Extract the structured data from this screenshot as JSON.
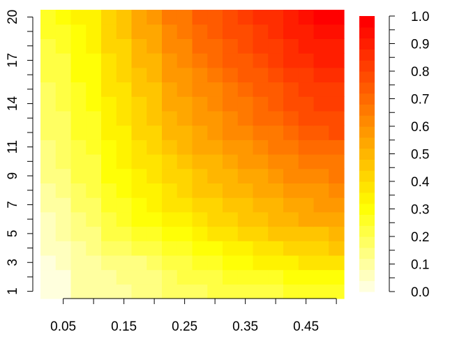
{
  "chart_data": {
    "type": "heatmap",
    "title": "",
    "xlabel": "",
    "ylabel": "",
    "x": [
      0.025,
      0.05,
      0.075,
      0.1,
      0.125,
      0.15,
      0.175,
      0.2,
      0.225,
      0.25,
      0.275,
      0.3,
      0.325,
      0.35,
      0.375,
      0.4,
      0.425,
      0.45,
      0.475,
      0.5
    ],
    "y": [
      1,
      2,
      3,
      4,
      5,
      6,
      7,
      8,
      9,
      10,
      11,
      12,
      13,
      14,
      15,
      16,
      17,
      18,
      19,
      20
    ],
    "x_tick_labels": [
      "0.05",
      "0.15",
      "0.25",
      "0.35",
      "0.45"
    ],
    "y_tick_labels": [
      "1",
      "3",
      "5",
      "7",
      "9",
      "11",
      "14",
      "17",
      "20"
    ],
    "grid": false,
    "legend": {
      "position": "right",
      "range": [
        0.0,
        1.0
      ],
      "tick_labels": [
        "0.0",
        "0.1",
        "0.2",
        "0.3",
        "0.4",
        "0.5",
        "0.6",
        "0.7",
        "0.8",
        "0.9",
        "1.0"
      ]
    },
    "color_levels": 25,
    "colors": {
      "low": "#ffffdd",
      "mid": "#ffff00",
      "high": "#ff0000"
    },
    "values": [
      [
        0.01,
        0.02,
        0.08,
        0.1,
        0.1,
        0.11,
        0.12,
        0.13,
        0.16,
        0.18,
        0.19,
        0.2,
        0.21,
        0.21,
        0.22,
        0.22,
        0.24,
        0.25,
        0.25,
        0.26
      ],
      [
        0.02,
        0.03,
        0.08,
        0.1,
        0.1,
        0.12,
        0.13,
        0.15,
        0.18,
        0.2,
        0.22,
        0.23,
        0.24,
        0.25,
        0.26,
        0.27,
        0.28,
        0.29,
        0.29,
        0.3
      ],
      [
        0.02,
        0.04,
        0.09,
        0.11,
        0.13,
        0.14,
        0.15,
        0.17,
        0.2,
        0.23,
        0.25,
        0.27,
        0.29,
        0.3,
        0.32,
        0.33,
        0.35,
        0.36,
        0.37,
        0.38
      ],
      [
        0.04,
        0.06,
        0.11,
        0.13,
        0.16,
        0.18,
        0.2,
        0.22,
        0.24,
        0.26,
        0.28,
        0.3,
        0.33,
        0.35,
        0.36,
        0.38,
        0.4,
        0.42,
        0.43,
        0.44
      ],
      [
        0.06,
        0.08,
        0.13,
        0.15,
        0.2,
        0.22,
        0.25,
        0.27,
        0.29,
        0.31,
        0.34,
        0.36,
        0.38,
        0.4,
        0.42,
        0.44,
        0.45,
        0.46,
        0.47,
        0.48
      ],
      [
        0.07,
        0.09,
        0.15,
        0.17,
        0.23,
        0.25,
        0.28,
        0.3,
        0.33,
        0.35,
        0.38,
        0.4,
        0.42,
        0.44,
        0.46,
        0.48,
        0.5,
        0.52,
        0.53,
        0.54
      ],
      [
        0.09,
        0.11,
        0.17,
        0.19,
        0.25,
        0.27,
        0.3,
        0.32,
        0.36,
        0.38,
        0.41,
        0.43,
        0.45,
        0.47,
        0.49,
        0.51,
        0.53,
        0.55,
        0.56,
        0.57
      ],
      [
        0.1,
        0.12,
        0.18,
        0.2,
        0.27,
        0.29,
        0.33,
        0.35,
        0.39,
        0.41,
        0.44,
        0.46,
        0.48,
        0.5,
        0.52,
        0.54,
        0.56,
        0.58,
        0.59,
        0.6
      ],
      [
        0.12,
        0.14,
        0.2,
        0.22,
        0.29,
        0.31,
        0.35,
        0.37,
        0.41,
        0.43,
        0.46,
        0.48,
        0.5,
        0.53,
        0.55,
        0.57,
        0.6,
        0.62,
        0.63,
        0.64
      ],
      [
        0.14,
        0.16,
        0.21,
        0.23,
        0.3,
        0.32,
        0.37,
        0.39,
        0.43,
        0.45,
        0.49,
        0.51,
        0.54,
        0.56,
        0.58,
        0.6,
        0.63,
        0.65,
        0.66,
        0.67
      ],
      [
        0.15,
        0.17,
        0.23,
        0.25,
        0.31,
        0.34,
        0.39,
        0.41,
        0.46,
        0.48,
        0.52,
        0.54,
        0.57,
        0.59,
        0.62,
        0.64,
        0.67,
        0.69,
        0.7,
        0.71
      ],
      [
        0.16,
        0.18,
        0.24,
        0.26,
        0.33,
        0.35,
        0.41,
        0.43,
        0.48,
        0.5,
        0.54,
        0.56,
        0.6,
        0.62,
        0.65,
        0.67,
        0.71,
        0.73,
        0.75,
        0.76
      ],
      [
        0.17,
        0.19,
        0.25,
        0.27,
        0.34,
        0.36,
        0.42,
        0.44,
        0.5,
        0.52,
        0.56,
        0.58,
        0.62,
        0.64,
        0.68,
        0.7,
        0.74,
        0.76,
        0.78,
        0.79
      ],
      [
        0.18,
        0.2,
        0.26,
        0.28,
        0.35,
        0.37,
        0.43,
        0.45,
        0.52,
        0.54,
        0.58,
        0.6,
        0.64,
        0.66,
        0.7,
        0.72,
        0.76,
        0.78,
        0.8,
        0.81
      ],
      [
        0.19,
        0.21,
        0.27,
        0.29,
        0.37,
        0.39,
        0.45,
        0.47,
        0.54,
        0.56,
        0.61,
        0.63,
        0.67,
        0.69,
        0.72,
        0.74,
        0.78,
        0.8,
        0.82,
        0.83
      ],
      [
        0.2,
        0.22,
        0.28,
        0.3,
        0.38,
        0.4,
        0.46,
        0.48,
        0.56,
        0.58,
        0.63,
        0.65,
        0.7,
        0.72,
        0.75,
        0.77,
        0.81,
        0.83,
        0.85,
        0.86
      ],
      [
        0.21,
        0.23,
        0.29,
        0.31,
        0.39,
        0.41,
        0.48,
        0.5,
        0.58,
        0.6,
        0.66,
        0.68,
        0.72,
        0.74,
        0.78,
        0.8,
        0.84,
        0.86,
        0.88,
        0.89
      ],
      [
        0.23,
        0.25,
        0.3,
        0.32,
        0.41,
        0.43,
        0.5,
        0.52,
        0.6,
        0.62,
        0.68,
        0.7,
        0.74,
        0.76,
        0.8,
        0.82,
        0.86,
        0.88,
        0.9,
        0.91
      ],
      [
        0.24,
        0.26,
        0.31,
        0.33,
        0.42,
        0.44,
        0.52,
        0.54,
        0.62,
        0.64,
        0.7,
        0.72,
        0.76,
        0.78,
        0.82,
        0.84,
        0.88,
        0.9,
        0.93,
        0.94
      ],
      [
        0.26,
        0.28,
        0.32,
        0.34,
        0.43,
        0.45,
        0.54,
        0.56,
        0.64,
        0.66,
        0.72,
        0.74,
        0.78,
        0.8,
        0.84,
        0.86,
        0.91,
        0.93,
        0.96,
        0.98
      ]
    ]
  }
}
